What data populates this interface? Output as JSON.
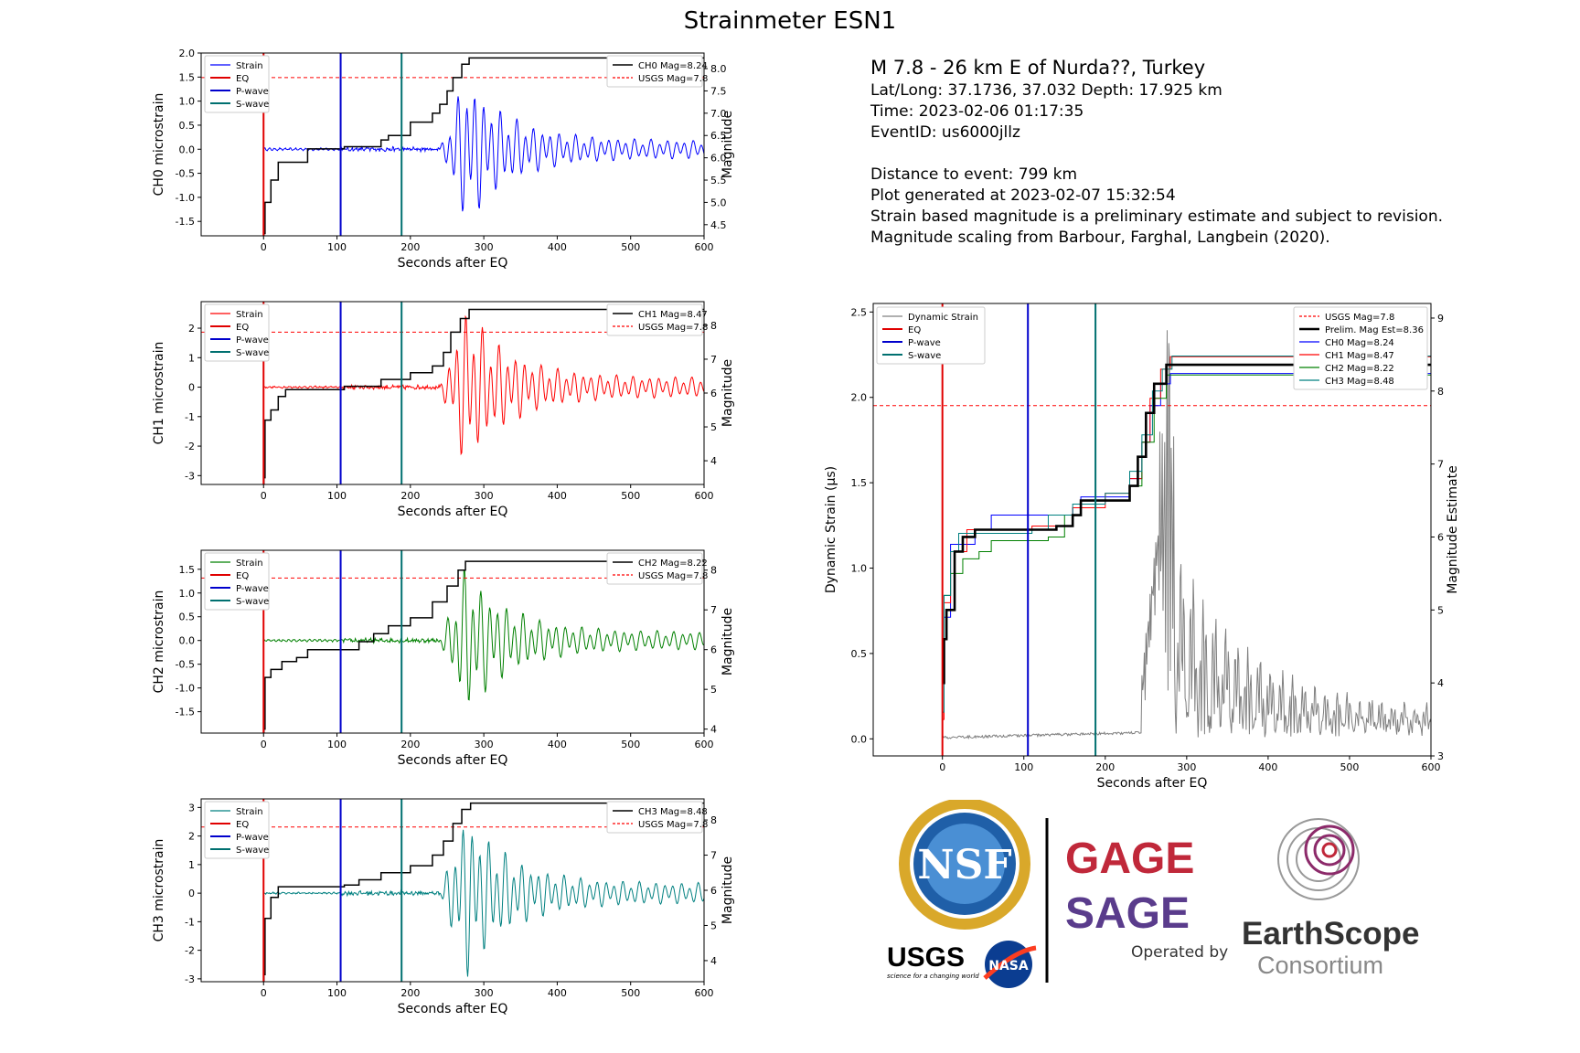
{
  "figure": {
    "title": "Strainmeter ESN1"
  },
  "event_info": {
    "headline": "M 7.8 - 26 km E of Nurda??, Turkey",
    "latlong": "Lat/Long: 37.1736, 37.032  Depth: 17.925 km",
    "time": "Time: 2023-02-06 01:17:35",
    "event_id": "EventID: us6000jllz",
    "distance": "Distance to event: 799 km",
    "generated": "Plot generated at 2023-02-07 15:32:54",
    "note1": "Strain based magnitude is a preliminary estimate and subject to revision.",
    "note2": "Magnitude scaling from Barbour, Farghal, Langbein (2020)."
  },
  "logos": {
    "nsf": "NSF",
    "usgs": "USGS",
    "usgs_tagline": "science for a changing world",
    "nasa": "NASA",
    "gage": "GAGE",
    "sage": "SAGE",
    "operated_by": "Operated by",
    "earthscope": "EarthScope",
    "consortium": "Consortium"
  },
  "colors": {
    "ch0": "#0000ff",
    "ch1": "#ff0000",
    "ch2": "#008000",
    "ch3": "#008080",
    "eq": "#e00000",
    "pwave": "#0000cc",
    "swave": "#007070",
    "mag": "#000000",
    "usgs": "#ff0000",
    "dynamic": "#808080",
    "gage_red": "#c0283a",
    "sage_purple": "#5a3c8c"
  },
  "chart_data": [
    {
      "id": "ch0",
      "type": "line",
      "xlabel": "Seconds after EQ",
      "ylabel": "CH0 microstrain",
      "ylabel_right": "Magnitude",
      "xlim": [
        -85,
        600
      ],
      "ylim": [
        -1.8,
        2.0
      ],
      "ylim_right": [
        4.25,
        8.35
      ],
      "xticks": [
        0,
        100,
        200,
        300,
        400,
        500,
        600
      ],
      "yticks": [
        -1.5,
        -1.0,
        -0.5,
        0.0,
        0.5,
        1.0,
        1.5,
        2.0
      ],
      "yticks_right": [
        4.5,
        5.0,
        5.5,
        6.0,
        6.5,
        7.0,
        7.5,
        8.0
      ],
      "legend_left": [
        "Strain",
        "EQ",
        "P-wave",
        "S-wave"
      ],
      "legend_right": [
        "CH0 Mag=8.24",
        "USGS Mag=7.8"
      ],
      "eq_time": 0,
      "p_wave": 105,
      "s_wave": 188,
      "usgs_mag": 7.8,
      "final_mag": 8.24,
      "strain_amp": 1.6,
      "mag_steps": [
        [
          0.5,
          4.3
        ],
        [
          2,
          5.0
        ],
        [
          10,
          5.5
        ],
        [
          20,
          5.9
        ],
        [
          60,
          6.2
        ],
        [
          110,
          6.25
        ],
        [
          160,
          6.4
        ],
        [
          170,
          6.5
        ],
        [
          200,
          6.8
        ],
        [
          230,
          7.0
        ],
        [
          240,
          7.2
        ],
        [
          250,
          7.5
        ],
        [
          258,
          7.8
        ],
        [
          270,
          8.1
        ],
        [
          280,
          8.24
        ]
      ]
    },
    {
      "id": "ch1",
      "type": "line",
      "xlabel": "Seconds after EQ",
      "ylabel": "CH1 microstrain",
      "ylabel_right": "Magnitude",
      "xlim": [
        -85,
        600
      ],
      "ylim": [
        -3.3,
        2.9
      ],
      "ylim_right": [
        3.3,
        8.7
      ],
      "xticks": [
        0,
        100,
        200,
        300,
        400,
        500,
        600
      ],
      "yticks": [
        -3,
        -2,
        -1,
        0,
        1,
        2
      ],
      "yticks_right": [
        4,
        5,
        6,
        7,
        8
      ],
      "legend_left": [
        "Strain",
        "EQ",
        "P-wave",
        "S-wave"
      ],
      "legend_right": [
        "CH1 Mag=8.47",
        "USGS Mag=7.8"
      ],
      "eq_time": 0,
      "p_wave": 105,
      "s_wave": 188,
      "usgs_mag": 7.8,
      "final_mag": 8.47,
      "strain_amp": 2.8,
      "mag_steps": [
        [
          0.5,
          3.5
        ],
        [
          2,
          5.2
        ],
        [
          10,
          5.5
        ],
        [
          20,
          5.9
        ],
        [
          30,
          6.1
        ],
        [
          110,
          6.2
        ],
        [
          160,
          6.4
        ],
        [
          200,
          6.6
        ],
        [
          230,
          6.8
        ],
        [
          245,
          7.2
        ],
        [
          255,
          7.8
        ],
        [
          268,
          8.2
        ],
        [
          280,
          8.47
        ]
      ]
    },
    {
      "id": "ch2",
      "type": "line",
      "xlabel": "Seconds after EQ",
      "ylabel": "CH2 microstrain",
      "ylabel_right": "Magnitude",
      "xlim": [
        -85,
        600
      ],
      "ylim": [
        -1.95,
        1.9
      ],
      "ylim_right": [
        3.9,
        8.5
      ],
      "xticks": [
        0,
        100,
        200,
        300,
        400,
        500,
        600
      ],
      "yticks": [
        -1.5,
        -1.0,
        -0.5,
        0.0,
        0.5,
        1.0,
        1.5
      ],
      "yticks_right": [
        4,
        5,
        6,
        7,
        8
      ],
      "legend_left": [
        "Strain",
        "EQ",
        "P-wave",
        "S-wave"
      ],
      "legend_right": [
        "CH2 Mag=8.22",
        "USGS Mag=7.8"
      ],
      "eq_time": 0,
      "p_wave": 105,
      "s_wave": 188,
      "usgs_mag": 7.8,
      "final_mag": 8.22,
      "strain_amp": 1.6,
      "mag_steps": [
        [
          0.5,
          4.0
        ],
        [
          2,
          5.3
        ],
        [
          10,
          5.5
        ],
        [
          25,
          5.7
        ],
        [
          45,
          5.8
        ],
        [
          60,
          6.0
        ],
        [
          130,
          6.2
        ],
        [
          150,
          6.4
        ],
        [
          170,
          6.6
        ],
        [
          200,
          6.8
        ],
        [
          230,
          7.2
        ],
        [
          250,
          7.6
        ],
        [
          265,
          8.0
        ],
        [
          275,
          8.22
        ]
      ]
    },
    {
      "id": "ch3",
      "type": "line",
      "xlabel": "Seconds after EQ",
      "ylabel": "CH3 microstrain",
      "ylabel_right": "Magnitude",
      "xlim": [
        -85,
        600
      ],
      "ylim": [
        -3.1,
        3.3
      ],
      "ylim_right": [
        3.4,
        8.6
      ],
      "xticks": [
        0,
        100,
        200,
        300,
        400,
        500,
        600
      ],
      "yticks": [
        -3,
        -2,
        -1,
        0,
        1,
        2,
        3
      ],
      "yticks_right": [
        4,
        5,
        6,
        7,
        8
      ],
      "legend_left": [
        "Strain",
        "EQ",
        "P-wave",
        "S-wave"
      ],
      "legend_right": [
        "CH3 Mag=8.48",
        "USGS Mag=7.8"
      ],
      "eq_time": 0,
      "p_wave": 105,
      "s_wave": 188,
      "usgs_mag": 7.8,
      "final_mag": 8.48,
      "strain_amp": 3.0,
      "mag_steps": [
        [
          0.5,
          3.6
        ],
        [
          2,
          5.2
        ],
        [
          10,
          5.8
        ],
        [
          20,
          6.1
        ],
        [
          110,
          6.15
        ],
        [
          130,
          6.3
        ],
        [
          160,
          6.5
        ],
        [
          200,
          6.7
        ],
        [
          230,
          7.0
        ],
        [
          245,
          7.4
        ],
        [
          258,
          7.9
        ],
        [
          270,
          8.3
        ],
        [
          282,
          8.48
        ]
      ]
    },
    {
      "id": "dynamic",
      "type": "line",
      "xlabel": "Seconds after EQ",
      "ylabel": "Dynamic Strain (µs)",
      "ylabel_right": "Magnitude Estimate",
      "xlim": [
        -85,
        600
      ],
      "ylim": [
        -0.1,
        2.55
      ],
      "ylim_right": [
        3,
        9.2
      ],
      "xticks": [
        0,
        100,
        200,
        300,
        400,
        500,
        600
      ],
      "yticks": [
        0.0,
        0.5,
        1.0,
        1.5,
        2.0,
        2.5
      ],
      "yticks_right": [
        3,
        4,
        5,
        6,
        7,
        8,
        9
      ],
      "legend_left": [
        "Dynamic Strain",
        "EQ",
        "P-wave",
        "S-wave"
      ],
      "legend_right": [
        "USGS Mag=7.8",
        "Prelim. Mag Est=8.36",
        "CH0 Mag=8.24",
        "CH1 Mag=8.47",
        "CH2 Mag=8.22",
        "CH3 Mag=8.48"
      ],
      "eq_time": 0,
      "p_wave": 105,
      "s_wave": 188,
      "usgs_mag": 7.8,
      "prelim_mag": 8.36,
      "peak_dynamic": 2.42,
      "mag_series": [
        {
          "name": "Prelim. Mag Est=8.36",
          "steps": [
            [
              0.5,
              4.0
            ],
            [
              2,
              4.6
            ],
            [
              5,
              5.0
            ],
            [
              15,
              5.8
            ],
            [
              25,
              6.0
            ],
            [
              40,
              6.1
            ],
            [
              100,
              6.1
            ],
            [
              140,
              6.15
            ],
            [
              160,
              6.3
            ],
            [
              170,
              6.5
            ],
            [
              230,
              6.7
            ],
            [
              240,
              7.1
            ],
            [
              250,
              7.7
            ],
            [
              260,
              8.1
            ],
            [
              275,
              8.36
            ]
          ]
        },
        {
          "name": "CH0 Mag=8.24",
          "steps": [
            [
              0.5,
              4.2
            ],
            [
              2,
              4.9
            ],
            [
              10,
              5.9
            ],
            [
              40,
              6.1
            ],
            [
              60,
              6.3
            ],
            [
              110,
              6.3
            ],
            [
              160,
              6.4
            ],
            [
              170,
              6.55
            ],
            [
              230,
              6.8
            ],
            [
              245,
              7.3
            ],
            [
              255,
              7.8
            ],
            [
              268,
              8.1
            ],
            [
              280,
              8.24
            ]
          ]
        },
        {
          "name": "CH1 Mag=8.47",
          "steps": [
            [
              0.5,
              3.5
            ],
            [
              2,
              5.1
            ],
            [
              10,
              5.8
            ],
            [
              30,
              6.1
            ],
            [
              110,
              6.15
            ],
            [
              160,
              6.4
            ],
            [
              200,
              6.6
            ],
            [
              230,
              6.8
            ],
            [
              245,
              7.3
            ],
            [
              255,
              7.9
            ],
            [
              268,
              8.3
            ],
            [
              280,
              8.47
            ]
          ]
        },
        {
          "name": "CH2 Mag=8.22",
          "steps": [
            [
              0.5,
              4.0
            ],
            [
              2,
              5.2
            ],
            [
              10,
              5.5
            ],
            [
              25,
              5.7
            ],
            [
              45,
              5.8
            ],
            [
              60,
              5.95
            ],
            [
              130,
              6.0
            ],
            [
              150,
              6.3
            ],
            [
              170,
              6.5
            ],
            [
              230,
              6.7
            ],
            [
              245,
              7.3
            ],
            [
              260,
              7.9
            ],
            [
              275,
              8.22
            ]
          ]
        },
        {
          "name": "CH3 Mag=8.48",
          "steps": [
            [
              0.5,
              3.6
            ],
            [
              2,
              5.2
            ],
            [
              10,
              5.8
            ],
            [
              20,
              6.05
            ],
            [
              110,
              6.1
            ],
            [
              130,
              6.3
            ],
            [
              160,
              6.45
            ],
            [
              200,
              6.6
            ],
            [
              230,
              6.9
            ],
            [
              245,
              7.4
            ],
            [
              258,
              8.0
            ],
            [
              270,
              8.3
            ],
            [
              282,
              8.48
            ]
          ]
        }
      ]
    }
  ]
}
